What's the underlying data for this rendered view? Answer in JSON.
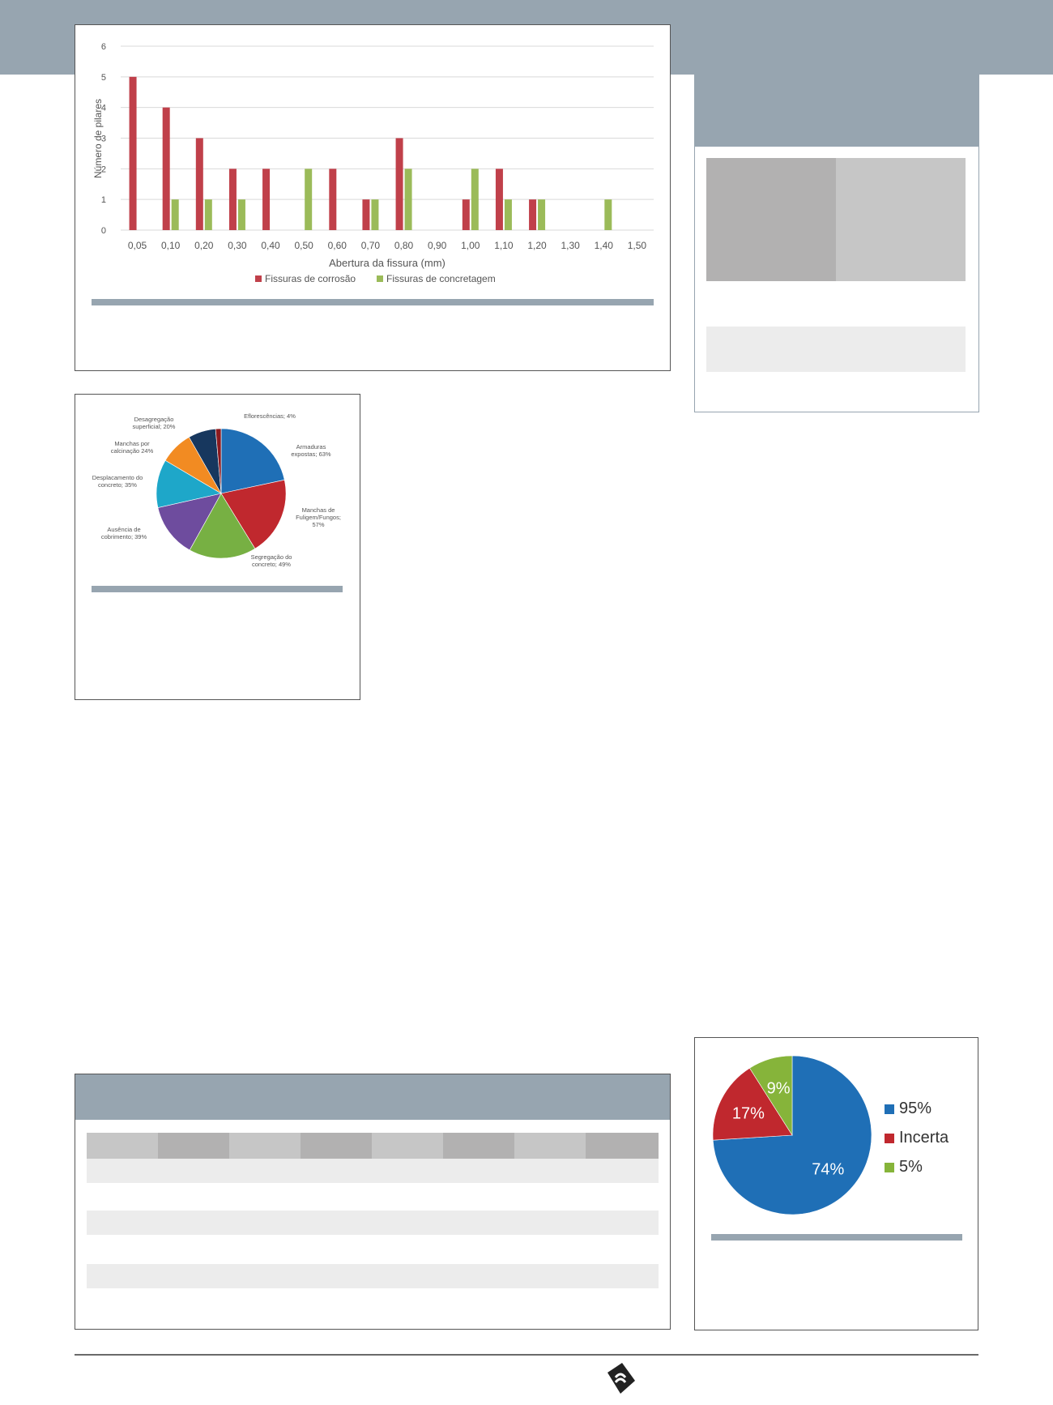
{
  "chart_data": [
    {
      "type": "bar",
      "title": "",
      "xlabel": "Abertura da fissura (mm)",
      "ylabel": "Número de pilares",
      "ylim": [
        0,
        6
      ],
      "yticks": [
        "0",
        "1",
        "2",
        "3",
        "4",
        "5",
        "6"
      ],
      "categories": [
        "0,05",
        "0,10",
        "0,20",
        "0,30",
        "0,40",
        "0,50",
        "0,60",
        "0,70",
        "0,80",
        "0,90",
        "1,00",
        "1,10",
        "1,20",
        "1,30",
        "1,40",
        "1,50"
      ],
      "series": [
        {
          "name": "Fissuras de corrosão",
          "color": "#c0404a",
          "values": [
            5,
            4,
            3,
            2,
            2,
            0,
            2,
            1,
            3,
            0,
            1,
            2,
            1,
            0,
            0,
            0
          ]
        },
        {
          "name": "Fissuras de concretagem",
          "color": "#9bbb59",
          "values": [
            0,
            1,
            1,
            1,
            0,
            2,
            0,
            1,
            2,
            0,
            2,
            1,
            1,
            0,
            1,
            0
          ]
        }
      ],
      "legend": "bottom",
      "grid": true
    },
    {
      "type": "pie",
      "slices": [
        {
          "label": "Armaduras expostas; 63%",
          "value": 63,
          "color": "#1f6fb6"
        },
        {
          "label": "Manchas de Fuligem/Fungos; 57%",
          "value": 57,
          "color": "#c0282e"
        },
        {
          "label": "Segregação do concreto; 49%",
          "value": 49,
          "color": "#77b043"
        },
        {
          "label": "Ausência de cobrimento; 39%",
          "value": 39,
          "color": "#6e4c9e"
        },
        {
          "label": "Desplacamento do concreto; 35%",
          "value": 35,
          "color": "#1ea7c9"
        },
        {
          "label": "Manchas por calcinação 24%",
          "value": 24,
          "color": "#f28b22"
        },
        {
          "label": "Desagregação superficial; 20%",
          "value": 20,
          "color": "#17375e"
        },
        {
          "label": "Eflorescências; 4%",
          "value": 4,
          "color": "#8b1a1f"
        }
      ]
    },
    {
      "type": "pie",
      "slices": [
        {
          "label": "95%",
          "value": 74,
          "text": "74%",
          "color": "#1f6fb6"
        },
        {
          "label": "Incerta",
          "value": 17,
          "text": "17%",
          "color": "#c0282e"
        },
        {
          "label": "5%",
          "value": 9,
          "text": "9%",
          "color": "#86b43a"
        }
      ],
      "legend": "right"
    }
  ]
}
